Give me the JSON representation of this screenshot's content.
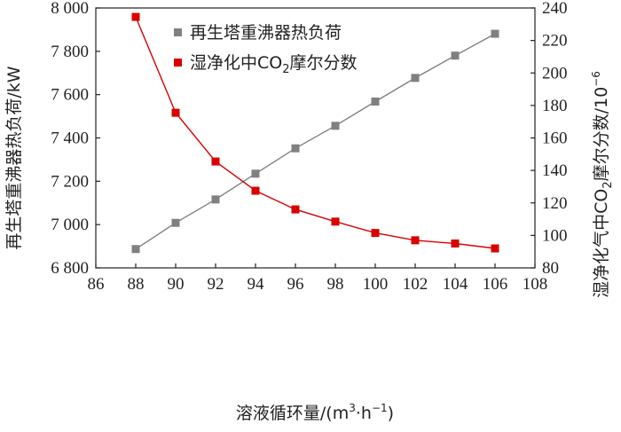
{
  "chart_data": {
    "type": "line",
    "x": [
      88,
      90,
      92,
      94,
      96,
      98,
      100,
      102,
      104,
      106
    ],
    "xlabel": {
      "main": "溶液循环量/(m",
      "sup1": "3",
      "mid": "·h",
      "sup2": "−1",
      "end": ")"
    },
    "xlim": [
      86,
      108
    ],
    "xticks": [
      "86",
      "88",
      "90",
      "92",
      "94",
      "96",
      "98",
      "100",
      "102",
      "104",
      "106",
      "108"
    ],
    "ylabel_left": "再生塔重沸器热负荷/kW",
    "ylim_left": [
      6800,
      8000
    ],
    "yticks_left": [
      "6 800",
      "7 000",
      "7 200",
      "7 400",
      "7 600",
      "7 800",
      "8 000"
    ],
    "ylabel_right": {
      "pre": "湿净化气中CO",
      "sub": "2",
      "post": "摩尔分数/10",
      "sup": "−6"
    },
    "ylim_right": [
      80,
      240
    ],
    "yticks_right": [
      "80",
      "100",
      "120",
      "140",
      "160",
      "180",
      "200",
      "220",
      "240"
    ],
    "series": [
      {
        "name": "再生塔重沸器热负荷",
        "axis": "left",
        "color": "#808080",
        "marker": "square",
        "values": [
          6887,
          7008,
          7116,
          7235,
          7352,
          7456,
          7568,
          7677,
          7780,
          7881
        ]
      },
      {
        "name_parts": {
          "pre": "湿净化中CO",
          "sub": "2",
          "post": "摩尔分数"
        },
        "axis": "right",
        "color": "#d90000",
        "marker": "square",
        "values": [
          234.5,
          175.5,
          145.5,
          127.5,
          116,
          108.5,
          101.5,
          97,
          95,
          92
        ]
      }
    ],
    "legend_position": "top-right",
    "grid": false
  }
}
